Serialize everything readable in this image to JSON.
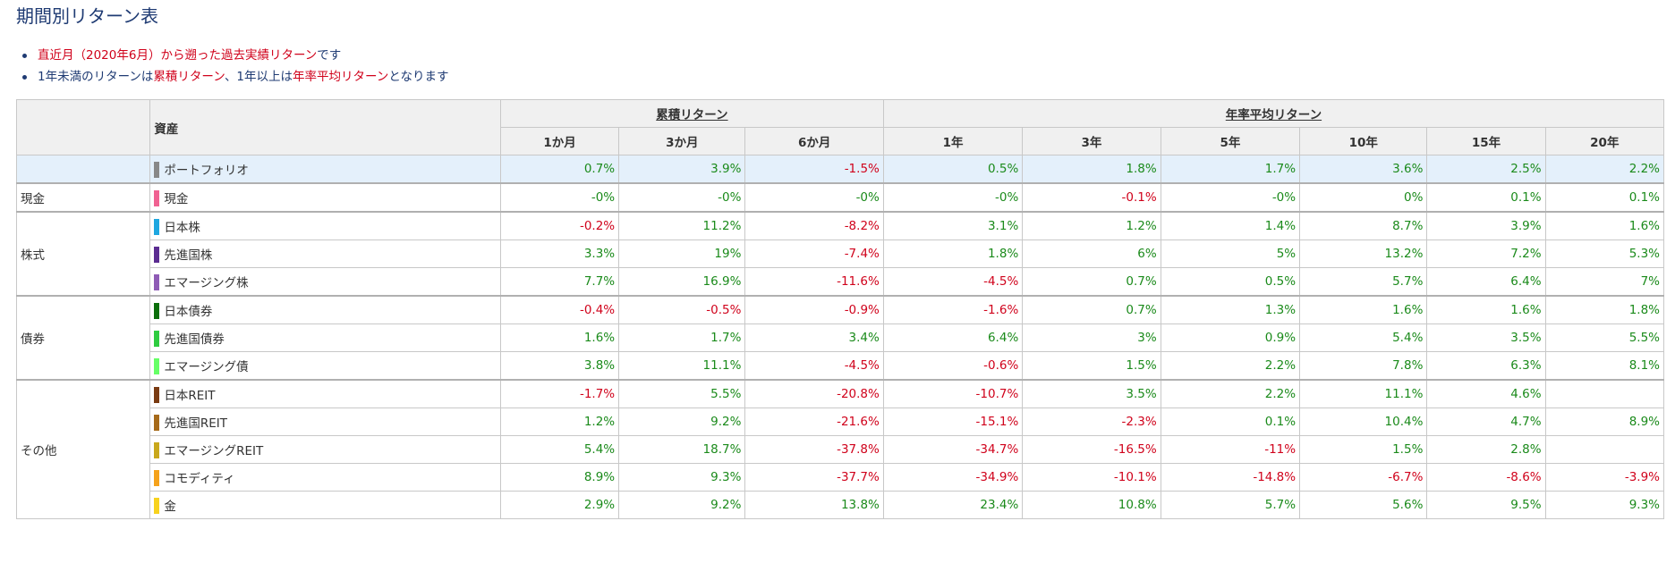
{
  "title": "期間別リターン表",
  "notes": {
    "line1": {
      "red": "直近月（2020年6月）から遡った過去実績リターン",
      "tail": "です"
    },
    "line2": {
      "a": "1年未満のリターンは",
      "b": "累積リターン",
      "c": "、1年以上は",
      "d": "年率平均リターン",
      "e": "となります"
    }
  },
  "table": {
    "asset_header": "資産",
    "group_cumulative": "累積リターン",
    "group_annual": "年率平均リターン",
    "periods": [
      "1か月",
      "3か月",
      "6か月",
      "1年",
      "3年",
      "5年",
      "10年",
      "15年",
      "20年"
    ],
    "portfolio": {
      "name": "ポートフォリオ",
      "color": "#888888",
      "values": [
        "0.7%",
        "3.9%",
        "-1.5%",
        "0.5%",
        "1.8%",
        "1.7%",
        "3.6%",
        "2.5%",
        "2.2%"
      ]
    },
    "categories": [
      {
        "label": "現金",
        "rows": [
          {
            "name": "現金",
            "color": "#f06292",
            "values": [
              "-0%",
              "-0%",
              "-0%",
              "-0%",
              "-0.1%",
              "-0%",
              "0%",
              "0.1%",
              "0.1%"
            ]
          }
        ]
      },
      {
        "label": "株式",
        "rows": [
          {
            "name": "日本株",
            "color": "#1ea7e0",
            "values": [
              "-0.2%",
              "11.2%",
              "-8.2%",
              "3.1%",
              "1.2%",
              "1.4%",
              "8.7%",
              "3.9%",
              "1.6%"
            ]
          },
          {
            "name": "先進国株",
            "color": "#5b2c91",
            "values": [
              "3.3%",
              "19%",
              "-7.4%",
              "1.8%",
              "6%",
              "5%",
              "13.2%",
              "7.2%",
              "5.3%"
            ]
          },
          {
            "name": "エマージング株",
            "color": "#8e5bb5",
            "values": [
              "7.7%",
              "16.9%",
              "-11.6%",
              "-4.5%",
              "0.7%",
              "0.5%",
              "5.7%",
              "6.4%",
              "7%"
            ]
          }
        ]
      },
      {
        "label": "債券",
        "rows": [
          {
            "name": "日本債券",
            "color": "#0b6e0b",
            "values": [
              "-0.4%",
              "-0.5%",
              "-0.9%",
              "-1.6%",
              "0.7%",
              "1.3%",
              "1.6%",
              "1.6%",
              "1.8%"
            ]
          },
          {
            "name": "先進国債券",
            "color": "#2ecc40",
            "values": [
              "1.6%",
              "1.7%",
              "3.4%",
              "6.4%",
              "3%",
              "0.9%",
              "5.4%",
              "3.5%",
              "5.5%"
            ]
          },
          {
            "name": "エマージング債",
            "color": "#66ff66",
            "values": [
              "3.8%",
              "11.1%",
              "-4.5%",
              "-0.6%",
              "1.5%",
              "2.2%",
              "7.8%",
              "6.3%",
              "8.1%"
            ]
          }
        ]
      },
      {
        "label": "その他",
        "rows": [
          {
            "name": "日本REIT",
            "color": "#7a3b12",
            "values": [
              "-1.7%",
              "5.5%",
              "-20.8%",
              "-10.7%",
              "3.5%",
              "2.2%",
              "11.1%",
              "4.6%",
              ""
            ]
          },
          {
            "name": "先進国REIT",
            "color": "#a66a1a",
            "values": [
              "1.2%",
              "9.2%",
              "-21.6%",
              "-15.1%",
              "-2.3%",
              "0.1%",
              "10.4%",
              "4.7%",
              "8.9%"
            ]
          },
          {
            "name": "エマージングREIT",
            "color": "#c9a81c",
            "values": [
              "5.4%",
              "18.7%",
              "-37.8%",
              "-34.7%",
              "-16.5%",
              "-11%",
              "1.5%",
              "2.8%",
              ""
            ]
          },
          {
            "name": "コモディティ",
            "color": "#f5a21b",
            "values": [
              "8.9%",
              "9.3%",
              "-37.7%",
              "-34.9%",
              "-10.1%",
              "-14.8%",
              "-6.7%",
              "-8.6%",
              "-3.9%"
            ]
          },
          {
            "name": "金",
            "color": "#f7d21e",
            "values": [
              "2.9%",
              "9.2%",
              "13.8%",
              "23.4%",
              "10.8%",
              "5.7%",
              "5.6%",
              "9.5%",
              "9.3%"
            ]
          }
        ]
      }
    ]
  }
}
